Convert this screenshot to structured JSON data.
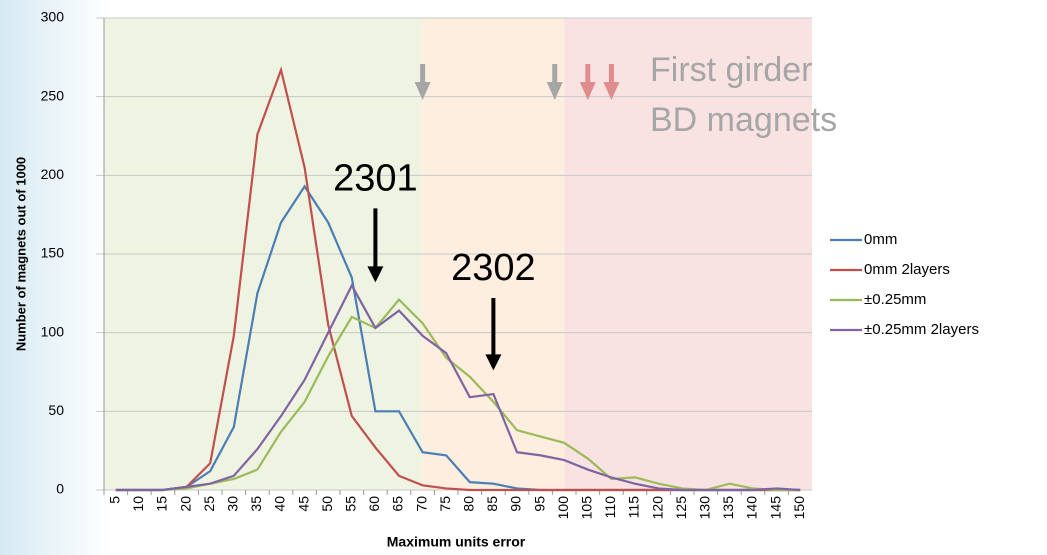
{
  "chart_data": {
    "type": "line",
    "y_label": "Number of magnets out of 1000",
    "x_label": "Maximum units error",
    "categories": [
      "5",
      "10",
      "15",
      "20",
      "25",
      "30",
      "35",
      "40",
      "45",
      "50",
      "55",
      "60",
      "65",
      "70",
      "75",
      "80",
      "85",
      "90",
      "95",
      "100",
      "105",
      "110",
      "115",
      "120",
      "125",
      "130",
      "135",
      "140",
      "145",
      "150"
    ],
    "series": [
      {
        "name": "0mm",
        "color": "#4a7eb5",
        "values": [
          0,
          0,
          0,
          2,
          12,
          40,
          125,
          170,
          193,
          170,
          135,
          50,
          50,
          24,
          22,
          5,
          4,
          1,
          0,
          0,
          0,
          0,
          0,
          0,
          0,
          0,
          0,
          0,
          0,
          0
        ]
      },
      {
        "name": "0mm 2layers",
        "color": "#c0504d",
        "values": [
          0,
          0,
          0,
          2,
          17,
          98,
          226,
          267,
          205,
          105,
          47,
          27,
          9,
          3,
          1,
          0,
          0,
          0,
          0,
          0,
          0,
          0,
          0,
          0,
          0,
          0,
          0,
          0,
          0,
          0
        ]
      },
      {
        "name": "±0.25mm",
        "color": "#9bbb59",
        "values": [
          0,
          0,
          0,
          1,
          4,
          7,
          13,
          37,
          56,
          85,
          110,
          103,
          121,
          106,
          84,
          72,
          56,
          38,
          34,
          30,
          20,
          7,
          8,
          4,
          1,
          0,
          4,
          1,
          0,
          0
        ]
      },
      {
        "name": "±0.25mm 2layers",
        "color": "#8064a2",
        "values": [
          0,
          0,
          0,
          2,
          4,
          9,
          26,
          47,
          70,
          100,
          130,
          103,
          114,
          98,
          87,
          59,
          61,
          24,
          22,
          19,
          13,
          8,
          4,
          1,
          0,
          0,
          0,
          0,
          1,
          0
        ]
      }
    ],
    "ylim": [
      0,
      300
    ],
    "yticks": [
      0,
      50,
      100,
      150,
      200,
      250,
      300
    ],
    "grid": true,
    "legend": "right",
    "region_bounds": [
      70,
      100
    ],
    "region_colors": [
      "#eef3e2",
      "#fdeee0",
      "#f8e2e2"
    ],
    "markers": [
      {
        "x": 70,
        "color": "#a6a6a6"
      },
      {
        "x": 98,
        "color": "#a6a6a6"
      },
      {
        "x": 105,
        "color": "#e08c8c"
      },
      {
        "x": 110,
        "color": "#e08c8c"
      }
    ],
    "marker_note": "First girder BD magnets",
    "annotations": [
      {
        "text": "2301",
        "x": 60,
        "y_from": 179,
        "y_to": 132
      },
      {
        "text": "2302",
        "x": 85,
        "y_from": 122,
        "y_to": 76
      }
    ]
  }
}
